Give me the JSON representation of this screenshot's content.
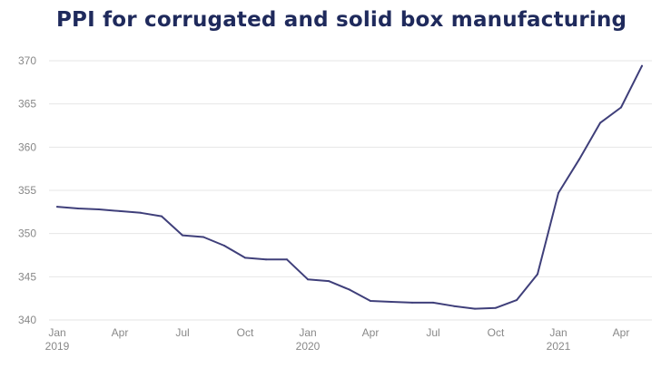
{
  "chart_data": {
    "type": "line",
    "title": "PPI for corrugated and solid box manufacturing",
    "xlabel": "",
    "ylabel": "",
    "ylim": [
      340,
      370
    ],
    "yticks": [
      370,
      365,
      360,
      355,
      350,
      345,
      340
    ],
    "x_ticks": [
      {
        "index": 0,
        "label": "Jan",
        "year": "2019"
      },
      {
        "index": 3,
        "label": "Apr",
        "year": ""
      },
      {
        "index": 6,
        "label": "Jul",
        "year": ""
      },
      {
        "index": 9,
        "label": "Oct",
        "year": ""
      },
      {
        "index": 12,
        "label": "Jan",
        "year": "2020"
      },
      {
        "index": 15,
        "label": "Apr",
        "year": ""
      },
      {
        "index": 18,
        "label": "Jul",
        "year": ""
      },
      {
        "index": 21,
        "label": "Oct",
        "year": ""
      },
      {
        "index": 24,
        "label": "Jan",
        "year": "2021"
      },
      {
        "index": 27,
        "label": "Apr",
        "year": ""
      }
    ],
    "series": [
      {
        "name": "PPI",
        "color": "#3f3f7a",
        "values": [
          353.1,
          352.9,
          352.8,
          352.6,
          352.4,
          352.0,
          349.8,
          349.6,
          348.6,
          347.2,
          347.0,
          347.0,
          344.7,
          344.5,
          343.5,
          342.2,
          342.1,
          342.0,
          342.0,
          341.6,
          341.3,
          341.4,
          342.3,
          345.3,
          354.7,
          358.6,
          362.8,
          364.6,
          369.4
        ]
      }
    ]
  }
}
